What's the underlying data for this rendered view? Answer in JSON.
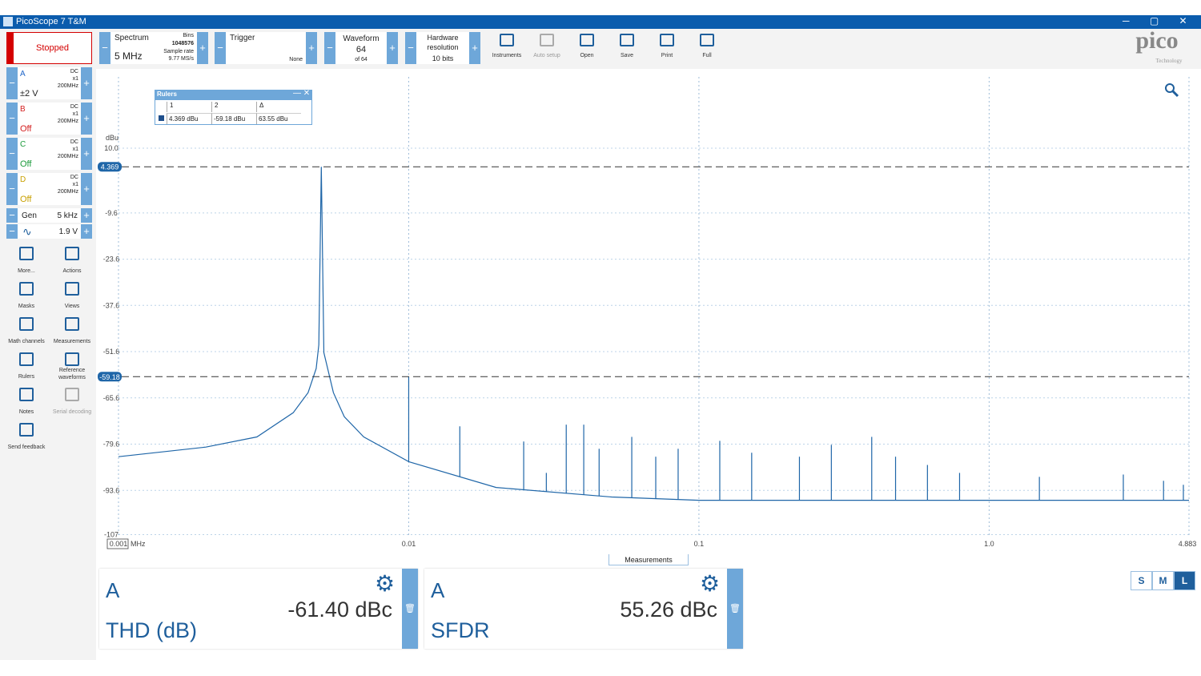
{
  "window": {
    "title": "PicoScope 7 T&M"
  },
  "toolbar": {
    "run_state": "Stopped",
    "mode": {
      "label": "Spectrum",
      "value": "5 MHz",
      "bins_label": "Bins",
      "bins": "1048576",
      "rate_label": "Sample rate",
      "rate": "9.77 MS/s"
    },
    "trigger": {
      "label": "Trigger",
      "value": "None"
    },
    "waveform": {
      "label": "Waveform",
      "value": "64",
      "of": "of 64"
    },
    "resolution": {
      "label": "Hardware resolution",
      "value": "10 bits"
    },
    "buttons": [
      "Instruments",
      "Auto setup",
      "Open",
      "Save",
      "Print",
      "Full"
    ]
  },
  "logo": {
    "name": "pico",
    "tagline": "Technology"
  },
  "channels": [
    {
      "name": "A",
      "coupling": "DC",
      "probe": "x1",
      "bandwidth": "200MHz",
      "range": "±2 V"
    },
    {
      "name": "B",
      "coupling": "DC",
      "probe": "x1",
      "bandwidth": "200MHz",
      "range": "Off"
    },
    {
      "name": "C",
      "coupling": "DC",
      "probe": "x1",
      "bandwidth": "200MHz",
      "range": "Off"
    },
    {
      "name": "D",
      "coupling": "DC",
      "probe": "x1",
      "bandwidth": "200MHz",
      "range": "Off"
    }
  ],
  "generator": {
    "label": "Gen",
    "frequency": "5 kHz",
    "amplitude": "1.9 V"
  },
  "tools": [
    "More...",
    "Actions",
    "Masks",
    "Views",
    "Math channels",
    "Measurements",
    "Rulers",
    "Reference waveforms",
    "Notes",
    "Serial decoding",
    "Send feedback"
  ],
  "rulers_panel": {
    "title": "Rulers",
    "headers": [
      "1",
      "2",
      "Δ"
    ],
    "values": [
      "4.369 dBu",
      "-59.18 dBu",
      "63.55 dBu"
    ]
  },
  "chart_data": {
    "type": "line",
    "x_unit": "MHz",
    "y_unit": "dBu",
    "log_x": true,
    "grid": true,
    "xlim": [
      0.001,
      4.883
    ],
    "xticks": [
      0.001,
      0.01,
      0.1,
      {
        "value": 1,
        "label": "1.0"
      },
      4.883
    ],
    "ylim": [
      -107.6,
      10
    ],
    "yticks": [
      {
        "value": 10,
        "label": "10.0"
      },
      -9.6,
      -23.6,
      -37.6,
      -51.6,
      -65.6,
      -79.6,
      -93.6,
      {
        "value": -107,
        "label": "-107"
      }
    ],
    "rulers": [
      4.369,
      -59.18
    ],
    "series": [
      {
        "color": "#1f66a8",
        "x": [
          0.001,
          0.002,
          0.003,
          0.004,
          0.0045,
          0.0048,
          0.0049,
          0.005,
          0.0051,
          0.0055,
          0.006,
          0.007,
          0.01,
          0.02,
          0.05,
          0.1,
          1,
          4.883
        ],
        "values": [
          -83.4,
          -80.5,
          -77.4,
          -70.1,
          -64,
          -56.7,
          -49.5,
          4.369,
          -51.9,
          -64,
          -71.3,
          -77.4,
          -84.9,
          -92.7,
          -95.6,
          -96.6,
          -96.6,
          -96.6
        ]
      },
      {
        "color": "#1f66a8",
        "x": [
          0.01,
          0.015,
          0.0249,
          0.0298,
          0.0349,
          0.0401,
          0.0453,
          0.0587,
          0.071,
          0.0848,
          0.118,
          0.152,
          0.222,
          0.286,
          0.394,
          0.476,
          0.613,
          0.791,
          1.49,
          2.9,
          3.99,
          4.67
        ],
        "values": [
          -59.18,
          -74.2,
          -78.8,
          -88.3,
          -73.7,
          -73.7,
          -81,
          -77.4,
          -83.4,
          -81,
          -78.6,
          -82.2,
          -83.4,
          -79.8,
          -77.4,
          -83.4,
          -85.9,
          -88.3,
          -89.5,
          -88.8,
          -90.7,
          -91.9
        ]
      }
    ]
  },
  "measurements": {
    "tab": "Measurements",
    "items": [
      {
        "channel": "A",
        "name": "THD (dB)",
        "value": "-61.40 dBc"
      },
      {
        "channel": "A",
        "name": "SFDR",
        "value": "55.26 dBc"
      }
    ]
  },
  "view_sizes": [
    "S",
    "M",
    "L"
  ]
}
